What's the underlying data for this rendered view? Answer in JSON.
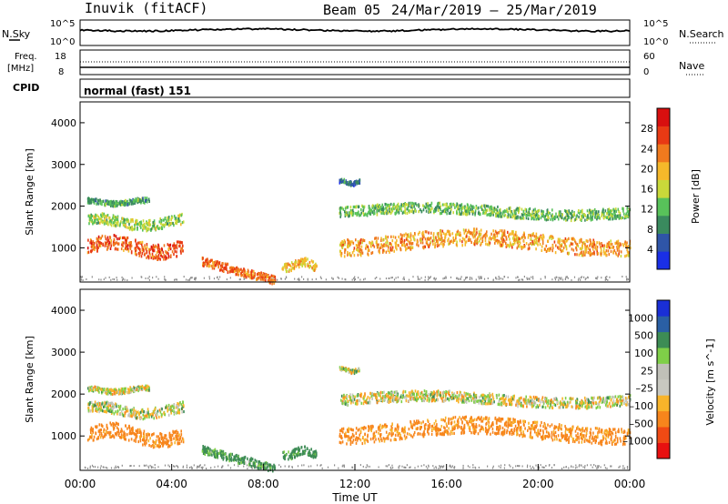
{
  "header": {
    "title": "Inuvik (fitACF)",
    "beam_label": "Beam 05",
    "date_range": "24/Mar/2019 – 25/Mar/2019"
  },
  "summary_panels": {
    "nsky": {
      "label": "N.Sky",
      "y_tick_top": "10^5",
      "y_tick_bottom": "10^0"
    },
    "nsearch": {
      "label": "N.Search",
      "y_tick_top": "10^5",
      "y_tick_bottom": "10^0"
    },
    "freq": {
      "label_line1": "Freq.",
      "label_line2": "[MHz]",
      "y_tick_top": "18",
      "y_tick_bottom": "8"
    },
    "nave": {
      "label": "Nave",
      "y_tick_top": "60",
      "y_tick_bottom": "0"
    },
    "cpid": {
      "label": "CPID",
      "value": "normal (fast) 151"
    }
  },
  "colors": {
    "power_scale": [
      "#1a2fe6",
      "#2f55a8",
      "#3a8a5e",
      "#58c25a",
      "#c9d93a",
      "#f5b82a",
      "#f07a1e",
      "#e83a14",
      "#d80f0f"
    ],
    "velocity_scale": [
      "#e81010",
      "#f04a14",
      "#f7851c",
      "#f8b42a",
      "#c8c8c0",
      "#c0c0b8",
      "#7fcf48",
      "#3d8c55",
      "#2a5fa4",
      "#1a2fd6"
    ],
    "ground_scatter": "#8c8c8c"
  },
  "chart_data": [
    {
      "type": "heatmap",
      "name": "power",
      "ylabel": "Slant Range [km]",
      "xlabel": "",
      "colorbar_label": "Power [dB]",
      "colorbar_ticks": [
        "28",
        "24",
        "20",
        "16",
        "12",
        "8",
        "4"
      ],
      "colorbar_range": [
        0,
        32
      ],
      "y_ticks": [
        "1000",
        "2000",
        "3000",
        "4000"
      ],
      "ylim": [
        180,
        4500
      ],
      "xlim_hours": [
        0,
        24
      ],
      "echo_regions": [
        {
          "t0": 0.3,
          "t1": 4.5,
          "r_center": 1050,
          "r_width": 350,
          "power": 26
        },
        {
          "t0": 0.3,
          "t1": 4.5,
          "r_center": 1650,
          "r_width": 250,
          "power": 14
        },
        {
          "t0": 0.3,
          "t1": 3.0,
          "r_center": 2130,
          "r_width": 120,
          "power": 10
        },
        {
          "t0": 5.3,
          "t1": 8.5,
          "r_center": 700,
          "r_width": 200,
          "power": 25
        },
        {
          "t0": 8.8,
          "t1": 10.3,
          "r_center": 620,
          "r_width": 200,
          "power": 20
        },
        {
          "t0": 11.3,
          "t1": 24.0,
          "r_center": 1150,
          "r_width": 400,
          "power": 22
        },
        {
          "t0": 11.3,
          "t1": 24.0,
          "r_center": 1900,
          "r_width": 250,
          "power": 12
        },
        {
          "t0": 11.3,
          "t1": 12.2,
          "r_center": 2600,
          "r_width": 100,
          "power": 6
        }
      ]
    },
    {
      "type": "heatmap",
      "name": "velocity",
      "ylabel": "Slant Range [km]",
      "xlabel": "Time UT",
      "colorbar_label": "Velocity [m s^-1]",
      "colorbar_ticks": [
        "1000",
        "500",
        "100",
        "25",
        "–25",
        "–100",
        "–500",
        "–1000"
      ],
      "colorbar_range": [
        -1000,
        1000
      ],
      "y_ticks": [
        "1000",
        "2000",
        "3000",
        "4000"
      ],
      "ylim": [
        180,
        4500
      ],
      "x_ticks": [
        "00:00",
        "04:00",
        "08:00",
        "12:00",
        "16:00",
        "20:00",
        "00:00"
      ],
      "xlim_hours": [
        0,
        24
      ],
      "echo_regions": [
        {
          "t0": 0.3,
          "t1": 4.5,
          "r_center": 1050,
          "r_width": 350,
          "velocity": -200
        },
        {
          "t0": 0.3,
          "t1": 4.5,
          "r_center": 1650,
          "r_width": 250,
          "velocity": 10
        },
        {
          "t0": 0.3,
          "t1": 3.0,
          "r_center": 2130,
          "r_width": 120,
          "velocity": 0
        },
        {
          "t0": 5.3,
          "t1": 8.5,
          "r_center": 700,
          "r_width": 200,
          "velocity": 150
        },
        {
          "t0": 8.8,
          "t1": 10.3,
          "r_center": 620,
          "r_width": 200,
          "velocity": 200
        },
        {
          "t0": 11.3,
          "t1": 24.0,
          "r_center": 1150,
          "r_width": 400,
          "velocity": -180
        },
        {
          "t0": 11.3,
          "t1": 24.0,
          "r_center": 1900,
          "r_width": 250,
          "velocity": 0
        },
        {
          "t0": 11.3,
          "t1": 12.2,
          "r_center": 2600,
          "r_width": 100,
          "velocity": 0
        }
      ]
    }
  ]
}
